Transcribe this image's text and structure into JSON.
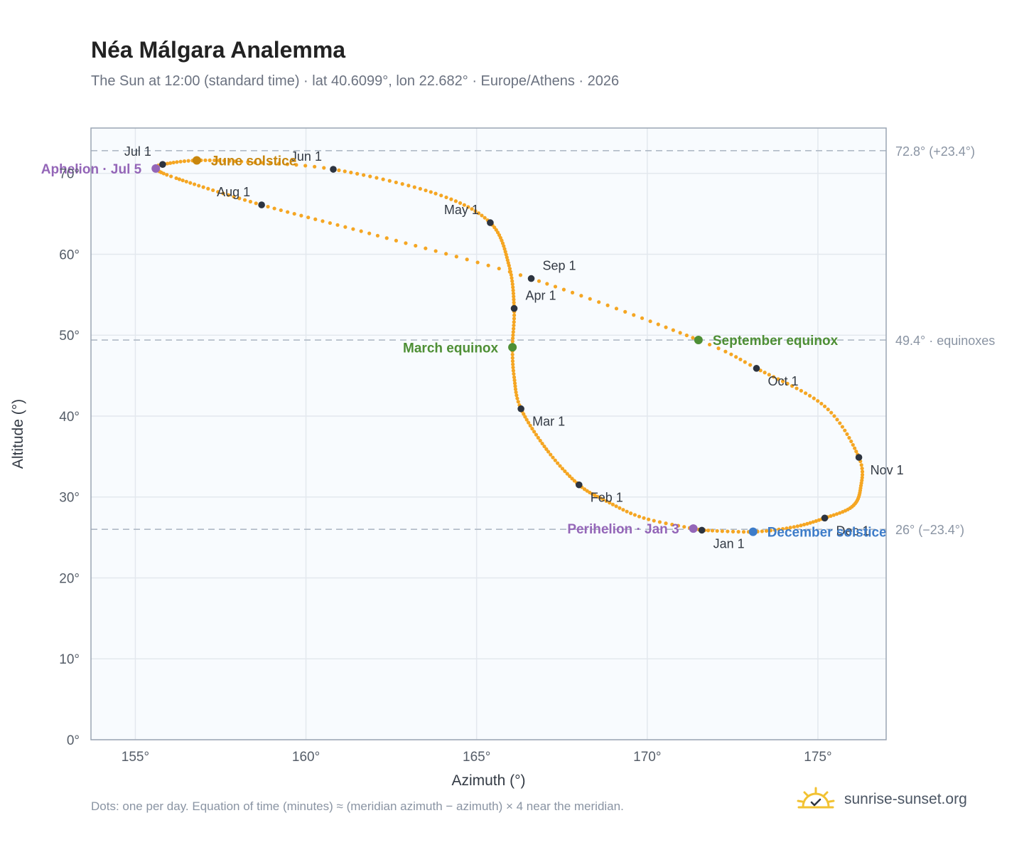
{
  "header": {
    "title": "Néa Málgara Analemma",
    "subtitle": "The Sun at 12:00 (standard time) · lat 40.6099°, lon 22.682° · Europe/Athens · 2026"
  },
  "footer": {
    "note": "Dots: one per day. Equation of time (minutes) ≈ (meridian azimuth − azimuth) × 4 near the meridian.",
    "brand": "sunrise-sunset.org"
  },
  "colors": {
    "curve": "#f5a623",
    "month_marker": "#2d3440",
    "solstice_june": "#c8860d",
    "equinox": "#4e8f35",
    "solstice_december": "#3d7cc9",
    "apsis": "#9466b8",
    "reference_line": "#b0bac6",
    "grid": "#e3e8ee",
    "plot_bg": "#f8fbfe"
  },
  "chart_data": {
    "type": "scatter",
    "xlabel": "Azimuth (°)",
    "ylabel": "Altitude (°)",
    "xlim": [
      153.7,
      177.0
    ],
    "ylim": [
      0,
      75.6
    ],
    "x_ticks": [
      155,
      160,
      165,
      170,
      175
    ],
    "y_ticks": [
      0,
      10,
      20,
      30,
      40,
      50,
      60,
      70
    ],
    "x_tick_labels": [
      "155°",
      "160°",
      "165°",
      "170°",
      "175°"
    ],
    "y_tick_labels": [
      "0°",
      "10°",
      "20°",
      "30°",
      "40°",
      "50°",
      "60°",
      "70°"
    ],
    "grid": true,
    "reference_lines": [
      {
        "y": 72.8,
        "label": "72.8° (+23.4°)"
      },
      {
        "y": 49.4,
        "label": "49.4° · equinoxes"
      },
      {
        "y": 26,
        "label": "26° (−23.4°)"
      }
    ],
    "curve_anchors": [
      {
        "day": 1,
        "az": 171.6,
        "alt": 25.9
      },
      {
        "day": 12,
        "az": 169.9,
        "alt": 27.4
      },
      {
        "day": 22,
        "az": 168.8,
        "alt": 29.5
      },
      {
        "day": 32,
        "az": 168.0,
        "alt": 31.5
      },
      {
        "day": 45,
        "az": 167.1,
        "alt": 35.6
      },
      {
        "day": 60,
        "az": 166.3,
        "alt": 40.9
      },
      {
        "day": 70,
        "az": 166.1,
        "alt": 44.8
      },
      {
        "day": 79,
        "az": 166.05,
        "alt": 48.5
      },
      {
        "day": 91,
        "az": 166.1,
        "alt": 53.3
      },
      {
        "day": 105,
        "az": 165.95,
        "alt": 58.6
      },
      {
        "day": 121,
        "az": 165.4,
        "alt": 63.9
      },
      {
        "day": 135,
        "az": 163.8,
        "alt": 67.5
      },
      {
        "day": 152,
        "az": 160.8,
        "alt": 70.5
      },
      {
        "day": 162,
        "az": 158.3,
        "alt": 71.4
      },
      {
        "day": 172,
        "az": 156.8,
        "alt": 71.6
      },
      {
        "day": 182,
        "az": 155.8,
        "alt": 71.1
      },
      {
        "day": 186,
        "az": 155.6,
        "alt": 70.6
      },
      {
        "day": 195,
        "az": 156.2,
        "alt": 69.4
      },
      {
        "day": 213,
        "az": 158.7,
        "alt": 66.1
      },
      {
        "day": 229,
        "az": 162.1,
        "alt": 62.3
      },
      {
        "day": 244,
        "az": 166.6,
        "alt": 57.0
      },
      {
        "day": 265,
        "az": 171.5,
        "alt": 49.4
      },
      {
        "day": 274,
        "az": 173.2,
        "alt": 45.9
      },
      {
        "day": 290,
        "az": 175.2,
        "alt": 41.2
      },
      {
        "day": 305,
        "az": 176.2,
        "alt": 34.9
      },
      {
        "day": 315,
        "az": 176.25,
        "alt": 31.1
      },
      {
        "day": 325,
        "az": 176.0,
        "alt": 28.8
      },
      {
        "day": 335,
        "az": 175.2,
        "alt": 27.4
      },
      {
        "day": 345,
        "az": 174.3,
        "alt": 26.3
      },
      {
        "day": 355,
        "az": 173.1,
        "alt": 25.7
      },
      {
        "day": 366,
        "az": 171.6,
        "alt": 25.9
      }
    ],
    "month_markers": [
      {
        "label": "Jan 1",
        "az": 171.6,
        "alt": 25.9,
        "anchor": "below"
      },
      {
        "label": "Feb 1",
        "az": 168.0,
        "alt": 31.5,
        "anchor": "right-below"
      },
      {
        "label": "Mar 1",
        "az": 166.3,
        "alt": 40.9,
        "anchor": "right-below"
      },
      {
        "label": "Apr 1",
        "az": 166.1,
        "alt": 53.3,
        "anchor": "right-above"
      },
      {
        "label": "May 1",
        "az": 165.4,
        "alt": 63.9,
        "anchor": "left-above"
      },
      {
        "label": "Jun 1",
        "az": 160.8,
        "alt": 70.5,
        "anchor": "left-above"
      },
      {
        "label": "Jul 1",
        "az": 155.8,
        "alt": 71.1,
        "anchor": "left-above"
      },
      {
        "label": "Aug 1",
        "az": 158.7,
        "alt": 66.1,
        "anchor": "left-above"
      },
      {
        "label": "Sep 1",
        "az": 166.6,
        "alt": 57.0,
        "anchor": "right-above"
      },
      {
        "label": "Oct 1",
        "az": 173.2,
        "alt": 45.9,
        "anchor": "right-below"
      },
      {
        "label": "Nov 1",
        "az": 176.2,
        "alt": 34.9,
        "anchor": "right-below"
      },
      {
        "label": "Dec 1",
        "az": 175.2,
        "alt": 27.4,
        "anchor": "right-below"
      }
    ],
    "special_points": [
      {
        "label": "June solstice",
        "az": 156.8,
        "alt": 71.6,
        "color": "#c8860d",
        "anchor": "right"
      },
      {
        "label": "March equinox",
        "az": 166.05,
        "alt": 48.5,
        "color": "#4e8f35",
        "anchor": "left"
      },
      {
        "label": "September equinox",
        "az": 171.5,
        "alt": 49.4,
        "color": "#4e8f35",
        "anchor": "right"
      },
      {
        "label": "December solstice",
        "az": 173.1,
        "alt": 25.7,
        "color": "#3d7cc9",
        "anchor": "right"
      },
      {
        "label": "Perihelion · Jan 3",
        "az": 171.35,
        "alt": 26.1,
        "color": "#9466b8",
        "anchor": "left"
      },
      {
        "label": "Aphelion · Jul 5",
        "az": 155.6,
        "alt": 70.6,
        "color": "#9466b8",
        "anchor": "left"
      }
    ]
  }
}
